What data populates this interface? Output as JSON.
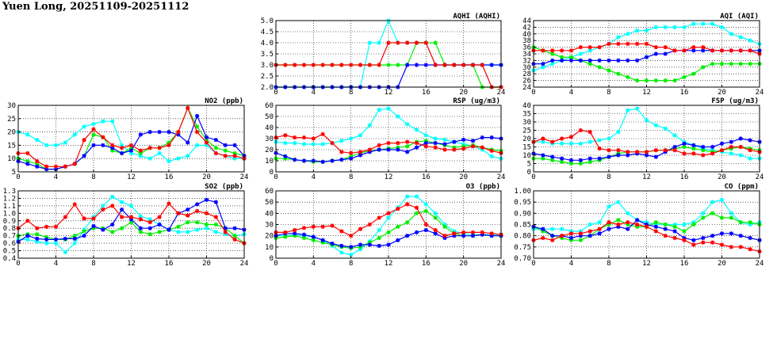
{
  "title": "Yuen Long, 20251109-20251112",
  "colors": {
    "s1": "#00ffff",
    "s2": "#00ee00",
    "s3": "#0000ff",
    "s4": "#ff0000"
  },
  "chart_data": [
    {
      "id": "aqhi",
      "type": "line",
      "title": "AQHI (AQHI)",
      "ylim": [
        2,
        5
      ],
      "yticks": [
        "2.0",
        "2.5",
        "3.0",
        "3.5",
        "4.0",
        "4.5",
        "5.0"
      ],
      "xticks": [
        "0",
        "4",
        "8",
        "12",
        "16",
        "20",
        "24"
      ],
      "series": [
        {
          "color": "s1",
          "values": [
            2,
            2,
            2,
            2,
            2,
            2,
            2,
            2,
            2,
            2,
            4,
            4,
            5,
            4,
            4,
            4,
            4,
            3,
            3,
            3,
            3,
            3,
            3,
            3,
            3
          ]
        },
        {
          "color": "s2",
          "values": [
            3,
            3,
            3,
            3,
            3,
            3,
            3,
            3,
            3,
            3,
            3,
            3,
            3,
            3,
            3,
            4,
            4,
            4,
            3,
            3,
            3,
            3,
            2,
            2,
            2
          ]
        },
        {
          "color": "s3",
          "values": [
            2,
            2,
            2,
            2,
            2,
            2,
            2,
            2,
            2,
            2,
            2,
            2,
            2,
            2,
            3,
            3,
            3,
            3,
            3,
            3,
            3,
            3,
            3,
            3,
            3
          ]
        },
        {
          "color": "s4",
          "values": [
            3,
            3,
            3,
            3,
            3,
            3,
            3,
            3,
            3,
            3,
            3,
            3,
            4,
            4,
            4,
            4,
            4,
            3,
            3,
            3,
            3,
            3,
            3,
            2,
            2
          ]
        }
      ]
    },
    {
      "id": "aqi",
      "type": "line",
      "title": "AQI (AQI)",
      "ylim": [
        24,
        44
      ],
      "yticks": [
        "24",
        "26",
        "28",
        "30",
        "32",
        "34",
        "36",
        "38",
        "40",
        "42",
        "44"
      ],
      "xticks": [
        "0",
        "4",
        "8",
        "12",
        "16",
        "20",
        "24"
      ],
      "series": [
        {
          "color": "s1",
          "values": [
            29,
            30,
            31,
            32,
            33,
            34,
            35,
            36,
            37,
            39,
            40,
            41,
            41,
            42,
            42,
            42,
            42,
            43,
            43,
            43,
            42,
            40,
            39,
            38,
            37
          ]
        },
        {
          "color": "s2",
          "values": [
            36,
            35,
            34,
            33,
            33,
            32,
            31,
            30,
            29,
            28,
            27,
            26,
            26,
            26,
            26,
            26,
            27,
            28,
            30,
            31,
            31,
            31,
            31,
            31,
            31
          ]
        },
        {
          "color": "s3",
          "values": [
            31,
            31,
            32,
            32,
            32,
            32,
            32,
            32,
            32,
            32,
            32,
            32,
            33,
            34,
            34,
            35,
            35,
            35,
            35,
            35,
            35,
            35,
            35,
            35,
            35
          ]
        },
        {
          "color": "s4",
          "values": [
            35,
            35,
            35,
            35,
            35,
            36,
            36,
            36,
            37,
            37,
            37,
            37,
            37,
            36,
            36,
            35,
            35,
            36,
            36,
            35,
            35,
            35,
            35,
            35,
            34
          ]
        }
      ]
    },
    {
      "id": "no2",
      "type": "line",
      "title": "NO2 (ppb)",
      "ylim": [
        5,
        30
      ],
      "yticks": [
        "5",
        "10",
        "15",
        "20",
        "25",
        "30"
      ],
      "xticks": [
        "0",
        "4",
        "8",
        "12",
        "16",
        "20",
        "24"
      ],
      "series": [
        {
          "color": "s1",
          "values": [
            20,
            19,
            17,
            15,
            15,
            16,
            19,
            22,
            23,
            24,
            24,
            15,
            12,
            11,
            10,
            12,
            9,
            10,
            11,
            15,
            15,
            12,
            11,
            10,
            10
          ]
        },
        {
          "color": "s2",
          "values": [
            10,
            9,
            8,
            6,
            6,
            7,
            8,
            11,
            19,
            18,
            13,
            12,
            14,
            12,
            14,
            14,
            16,
            20,
            29,
            22,
            17,
            14,
            13,
            12,
            11
          ]
        },
        {
          "color": "s3",
          "values": [
            9,
            8,
            7,
            6,
            6,
            7,
            8,
            11,
            15,
            15,
            14,
            12,
            13,
            19,
            20,
            20,
            20,
            19,
            16,
            26,
            18,
            17,
            15,
            15,
            11
          ]
        },
        {
          "color": "s4",
          "values": [
            12,
            12,
            9,
            7,
            7,
            7,
            8,
            17,
            21,
            18,
            15,
            14,
            15,
            13,
            14,
            14,
            15,
            20,
            29,
            20,
            16,
            12,
            11,
            11,
            10
          ]
        }
      ]
    },
    {
      "id": "rsp",
      "type": "line",
      "title": "RSP (ug/m3)",
      "ylim": [
        0,
        60
      ],
      "yticks": [
        "0",
        "10",
        "20",
        "30",
        "40",
        "50",
        "60"
      ],
      "xticks": [
        "0",
        "4",
        "8",
        "12",
        "16",
        "20",
        "24"
      ],
      "series": [
        {
          "color": "s1",
          "values": [
            27,
            26,
            26,
            25,
            25,
            25,
            26,
            28,
            30,
            33,
            42,
            56,
            57,
            50,
            43,
            38,
            33,
            30,
            29,
            27,
            25,
            23,
            20,
            14,
            12
          ]
        },
        {
          "color": "s2",
          "values": [
            12,
            12,
            11,
            10,
            9,
            9,
            10,
            11,
            14,
            17,
            19,
            20,
            21,
            22,
            23,
            27,
            28,
            26,
            24,
            22,
            23,
            24,
            22,
            20,
            19
          ]
        },
        {
          "color": "s3",
          "values": [
            17,
            14,
            11,
            10,
            10,
            9,
            10,
            11,
            12,
            15,
            18,
            20,
            20,
            20,
            18,
            22,
            26,
            26,
            25,
            27,
            29,
            28,
            31,
            31,
            30
          ]
        },
        {
          "color": "s4",
          "values": [
            31,
            33,
            31,
            31,
            30,
            34,
            26,
            18,
            17,
            18,
            20,
            24,
            26,
            26,
            27,
            26,
            23,
            22,
            20,
            20,
            21,
            23,
            22,
            19,
            17
          ]
        }
      ]
    },
    {
      "id": "fsp",
      "type": "line",
      "title": "FSP (ug/m3)",
      "ylim": [
        0,
        40
      ],
      "yticks": [
        "0",
        "5",
        "10",
        "15",
        "20",
        "25",
        "30",
        "35",
        "40"
      ],
      "xticks": [
        "0",
        "4",
        "8",
        "12",
        "16",
        "20",
        "24"
      ],
      "series": [
        {
          "color": "s1",
          "values": [
            18,
            18,
            17,
            17,
            17,
            17,
            18,
            19,
            20,
            24,
            37,
            38,
            31,
            28,
            26,
            22,
            18,
            16,
            14,
            13,
            12,
            11,
            10,
            8,
            8
          ]
        },
        {
          "color": "s2",
          "values": [
            8,
            8,
            7,
            6,
            5,
            5,
            6,
            7,
            9,
            11,
            12,
            12,
            12,
            13,
            13,
            14,
            15,
            14,
            13,
            12,
            13,
            14,
            15,
            14,
            13
          ]
        },
        {
          "color": "s3",
          "values": [
            11,
            10,
            9,
            8,
            7,
            7,
            8,
            8,
            9,
            10,
            10,
            11,
            10,
            9,
            12,
            15,
            17,
            16,
            15,
            15,
            17,
            18,
            20,
            19,
            18
          ]
        },
        {
          "color": "s4",
          "values": [
            18,
            20,
            18,
            20,
            21,
            25,
            24,
            14,
            13,
            13,
            12,
            12,
            12,
            13,
            13,
            13,
            11,
            11,
            10,
            11,
            13,
            15,
            15,
            13,
            12
          ]
        }
      ]
    },
    {
      "id": "so2",
      "type": "line",
      "title": "SO2 (ppb)",
      "ylim": [
        0.4,
        1.3
      ],
      "yticks": [
        "0.4",
        "0.5",
        "0.6",
        "0.7",
        "0.8",
        "0.9",
        "1.0",
        "1.1",
        "1.2",
        "1.3"
      ],
      "xticks": [
        "0",
        "4",
        "8",
        "12",
        "16",
        "20",
        "24"
      ],
      "series": [
        {
          "color": "s1",
          "values": [
            0.65,
            0.65,
            0.62,
            0.6,
            0.6,
            0.48,
            0.6,
            0.78,
            0.95,
            1.1,
            1.22,
            1.15,
            1.1,
            0.96,
            0.92,
            0.85,
            0.78,
            0.75,
            0.75,
            0.78,
            0.8,
            0.75,
            0.72,
            0.7,
            0.72
          ]
        },
        {
          "color": "s2",
          "values": [
            0.7,
            0.72,
            0.72,
            0.68,
            0.65,
            0.65,
            0.7,
            0.76,
            0.8,
            0.8,
            0.75,
            0.8,
            0.88,
            0.75,
            0.72,
            0.75,
            0.78,
            0.82,
            0.88,
            0.88,
            0.85,
            0.85,
            0.8,
            0.7,
            0.6
          ]
        },
        {
          "color": "s3",
          "values": [
            0.62,
            0.7,
            0.66,
            0.65,
            0.65,
            0.66,
            0.66,
            0.7,
            0.83,
            0.78,
            0.85,
            1.05,
            0.92,
            0.8,
            0.8,
            0.85,
            0.78,
            1.0,
            1.05,
            1.12,
            1.18,
            1.15,
            0.8,
            0.8,
            0.78
          ]
        },
        {
          "color": "s4",
          "values": [
            0.8,
            0.9,
            0.8,
            0.82,
            0.82,
            0.95,
            1.12,
            0.93,
            0.93,
            1.05,
            1.1,
            0.95,
            0.95,
            0.92,
            0.88,
            0.95,
            1.13,
            1.0,
            0.97,
            1.03,
            1.0,
            0.95,
            0.75,
            0.65,
            0.6
          ]
        }
      ]
    },
    {
      "id": "o3",
      "type": "line",
      "title": "O3 (ppb)",
      "ylim": [
        0,
        60
      ],
      "yticks": [
        "0",
        "10",
        "20",
        "30",
        "40",
        "50",
        "60"
      ],
      "xticks": [
        "0",
        "4",
        "8",
        "12",
        "16",
        "20",
        "24"
      ],
      "series": [
        {
          "color": "s1",
          "values": [
            20,
            20,
            21,
            20,
            19,
            16,
            11,
            5,
            3,
            8,
            15,
            25,
            36,
            45,
            55,
            55,
            48,
            40,
            30,
            24,
            22,
            21,
            21,
            21,
            21
          ]
        },
        {
          "color": "s2",
          "values": [
            18,
            19,
            20,
            18,
            16,
            14,
            12,
            10,
            9,
            10,
            14,
            18,
            23,
            28,
            32,
            40,
            42,
            36,
            28,
            22,
            20,
            20,
            21,
            20,
            20
          ]
        },
        {
          "color": "s3",
          "values": [
            20,
            22,
            22,
            21,
            19,
            16,
            13,
            11,
            10,
            12,
            12,
            11,
            12,
            16,
            20,
            23,
            25,
            22,
            18,
            20,
            20,
            20,
            21,
            20,
            20
          ]
        },
        {
          "color": "s4",
          "values": [
            23,
            23,
            25,
            27,
            28,
            28,
            29,
            24,
            20,
            26,
            30,
            36,
            40,
            44,
            48,
            45,
            30,
            25,
            20,
            22,
            23,
            23,
            23,
            22,
            21
          ]
        }
      ]
    },
    {
      "id": "co",
      "type": "line",
      "title": "CO (ppm)",
      "ylim": [
        0.7,
        1.0
      ],
      "yticks": [
        "0.70",
        "0.75",
        "0.80",
        "0.85",
        "0.90",
        "0.95",
        "1.00"
      ],
      "xticks": [
        "0",
        "4",
        "8",
        "12",
        "16",
        "20",
        "24"
      ],
      "series": [
        {
          "color": "s1",
          "values": [
            0.83,
            0.83,
            0.83,
            0.83,
            0.82,
            0.82,
            0.85,
            0.86,
            0.93,
            0.95,
            0.9,
            0.87,
            0.86,
            0.85,
            0.85,
            0.85,
            0.85,
            0.86,
            0.9,
            0.95,
            0.96,
            0.9,
            0.86,
            0.85,
            0.86
          ]
        },
        {
          "color": "s2",
          "values": [
            0.84,
            0.82,
            0.8,
            0.79,
            0.78,
            0.78,
            0.8,
            0.83,
            0.85,
            0.87,
            0.85,
            0.84,
            0.84,
            0.86,
            0.85,
            0.84,
            0.82,
            0.85,
            0.88,
            0.9,
            0.88,
            0.88,
            0.86,
            0.86,
            0.85
          ]
        },
        {
          "color": "s3",
          "values": [
            0.84,
            0.83,
            0.8,
            0.8,
            0.79,
            0.8,
            0.8,
            0.81,
            0.83,
            0.84,
            0.83,
            0.87,
            0.85,
            0.84,
            0.83,
            0.82,
            0.79,
            0.78,
            0.79,
            0.8,
            0.81,
            0.81,
            0.8,
            0.79,
            0.78
          ]
        },
        {
          "color": "s4",
          "values": [
            0.78,
            0.79,
            0.78,
            0.8,
            0.81,
            0.81,
            0.82,
            0.83,
            0.86,
            0.85,
            0.86,
            0.85,
            0.84,
            0.82,
            0.8,
            0.79,
            0.78,
            0.76,
            0.77,
            0.77,
            0.76,
            0.75,
            0.75,
            0.74,
            0.73
          ]
        }
      ]
    }
  ]
}
